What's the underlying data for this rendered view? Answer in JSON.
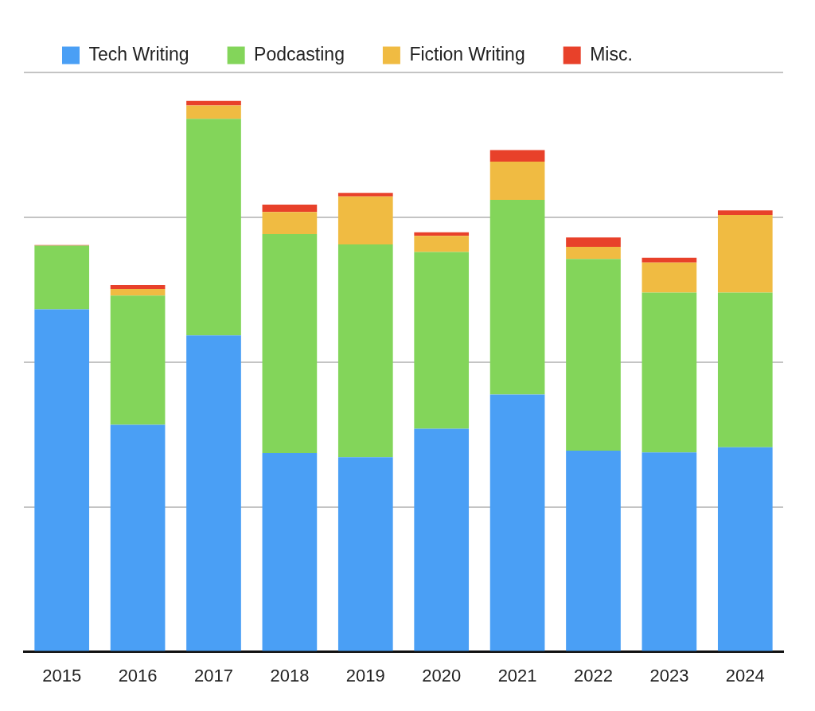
{
  "chart_data": {
    "type": "bar",
    "categories": [
      "2015",
      "2016",
      "2017",
      "2018",
      "2019",
      "2020",
      "2021",
      "2022",
      "2023",
      "2024"
    ],
    "series": [
      {
        "name": "Tech Writing",
        "color": "#4a9ff5",
        "values": [
          59.1,
          39.2,
          54.6,
          34.3,
          33.6,
          38.5,
          44.4,
          34.7,
          34.4,
          35.3
        ]
      },
      {
        "name": "Podcasting",
        "color": "#83d55a",
        "values": [
          11.0,
          22.3,
          37.4,
          37.8,
          36.7,
          30.5,
          33.6,
          33.1,
          27.6,
          26.7
        ]
      },
      {
        "name": "Fiction Writing",
        "color": "#f0bb42",
        "values": [
          0,
          1.1,
          2.3,
          3.8,
          8.3,
          2.8,
          6.6,
          2.1,
          5.2,
          13.4
        ]
      },
      {
        "name": "Misc.",
        "color": "#e8412a",
        "values": [
          0.1,
          0.7,
          0.8,
          1.3,
          0.6,
          0.6,
          2.0,
          1.6,
          0.8,
          0.8
        ]
      }
    ],
    "ylim": [
      0,
      100
    ],
    "yticks": [
      0,
      25,
      50,
      75,
      100
    ],
    "stacked": true,
    "grid": true,
    "legend": "top",
    "tick_labels": "x"
  }
}
